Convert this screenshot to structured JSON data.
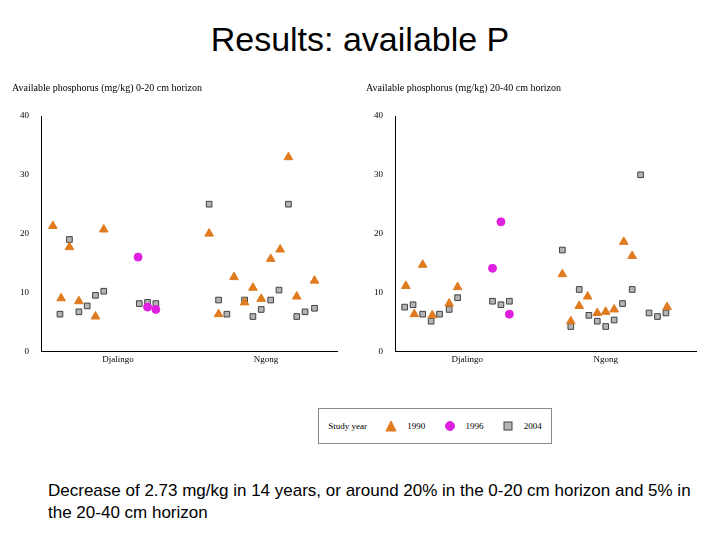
{
  "title": "Results: available P",
  "caption": "Decrease of 2.73 mg/kg in 14 years, or around 20% in the 0-20 cm horizon and 5% in the 20-40 cm horizon",
  "legend_title": "Study year",
  "chart_data": [
    {
      "type": "scatter",
      "title": "Available phosphorus (mg/kg) 0-20 cm horizon",
      "xlim": [
        0,
        25
      ],
      "xticks": [
        {
          "value": 6.5,
          "label": "Djalingo"
        },
        {
          "value": 19,
          "label": "Ngong"
        }
      ],
      "ylim": [
        0,
        40
      ],
      "yticks": [
        0,
        10,
        20,
        30,
        40
      ],
      "grid": false,
      "series": [
        {
          "name": "1990",
          "color": "#e07b20",
          "marker": "triangle",
          "x": [
            1.0,
            1.7,
            2.4,
            3.2,
            4.6,
            5.3,
            14.2,
            15.0,
            16.3,
            17.2,
            17.9,
            18.6,
            19.4,
            20.2,
            20.9,
            21.6,
            23.1
          ],
          "values": [
            21.3,
            9,
            17.7,
            8.5,
            5.9,
            20.7,
            20,
            6.3,
            12.6,
            8.3,
            10.8,
            8.9,
            15.7,
            17.3,
            33,
            9.3,
            12
          ]
        },
        {
          "name": "1996",
          "color": "#e020e0",
          "marker": "circle",
          "x": [
            8.2,
            9.0,
            9.7
          ],
          "values": [
            16,
            7.5,
            7.1
          ]
        },
        {
          "name": "2004",
          "color": "#b4b4b4",
          "marker": "square",
          "x": [
            1.6,
            2.4,
            3.2,
            3.9,
            4.6,
            5.3,
            8.3,
            9.0,
            9.7,
            14.2,
            15.0,
            15.7,
            17.2,
            17.9,
            18.6,
            19.4,
            20.1,
            20.9,
            21.6,
            22.3,
            23.1
          ],
          "values": [
            6.3,
            19,
            6.7,
            7.7,
            9.5,
            10.2,
            8.1,
            8.3,
            8.1,
            25,
            8.7,
            6.3,
            8.7,
            5.9,
            7.1,
            8.7,
            10.4,
            25,
            5.9,
            6.7,
            7.3
          ]
        }
      ]
    },
    {
      "type": "scatter",
      "title": "Available phosphorus (mg/kg) 20-40 cm horizon",
      "xlim": [
        0,
        25
      ],
      "xticks": [
        {
          "value": 6,
          "label": "Djalingo"
        },
        {
          "value": 17.5,
          "label": "Ngong"
        }
      ],
      "ylim": [
        0,
        40
      ],
      "yticks": [
        0,
        10,
        20,
        30,
        40
      ],
      "grid": false,
      "series": [
        {
          "name": "1990",
          "color": "#e07b20",
          "marker": "triangle",
          "x": [
            0.9,
            1.6,
            2.3,
            3.1,
            4.5,
            5.2,
            13.9,
            14.6,
            15.3,
            16.0,
            16.8,
            17.5,
            18.2,
            19.0,
            19.7,
            22.6
          ],
          "values": [
            11.1,
            6.3,
            14.7,
            6.1,
            8.1,
            10.9,
            13.1,
            5.1,
            7.7,
            9.3,
            6.5,
            6.7,
            7.1,
            18.6,
            16.2,
            7.5
          ]
        },
        {
          "name": "1996",
          "color": "#e020e0",
          "marker": "circle",
          "x": [
            8.8,
            8.1,
            9.5
          ],
          "values": [
            22,
            14.1,
            6.3
          ]
        },
        {
          "name": "2004",
          "color": "#b4b4b4",
          "marker": "square",
          "x": [
            0.8,
            1.5,
            2.3,
            3.0,
            3.7,
            4.5,
            5.2,
            8.1,
            8.8,
            9.5,
            13.9,
            14.6,
            15.3,
            16.1,
            16.8,
            17.5,
            18.2,
            18.9,
            19.7,
            20.4,
            21.1,
            21.8,
            22.5
          ],
          "values": [
            7.5,
            7.9,
            6.3,
            5.1,
            6.3,
            7.1,
            9.1,
            8.5,
            7.9,
            8.5,
            17.2,
            4.2,
            10.5,
            6.1,
            5.1,
            4.2,
            5.3,
            8.1,
            10.5,
            30,
            6.5,
            5.9,
            6.5
          ]
        }
      ]
    }
  ]
}
